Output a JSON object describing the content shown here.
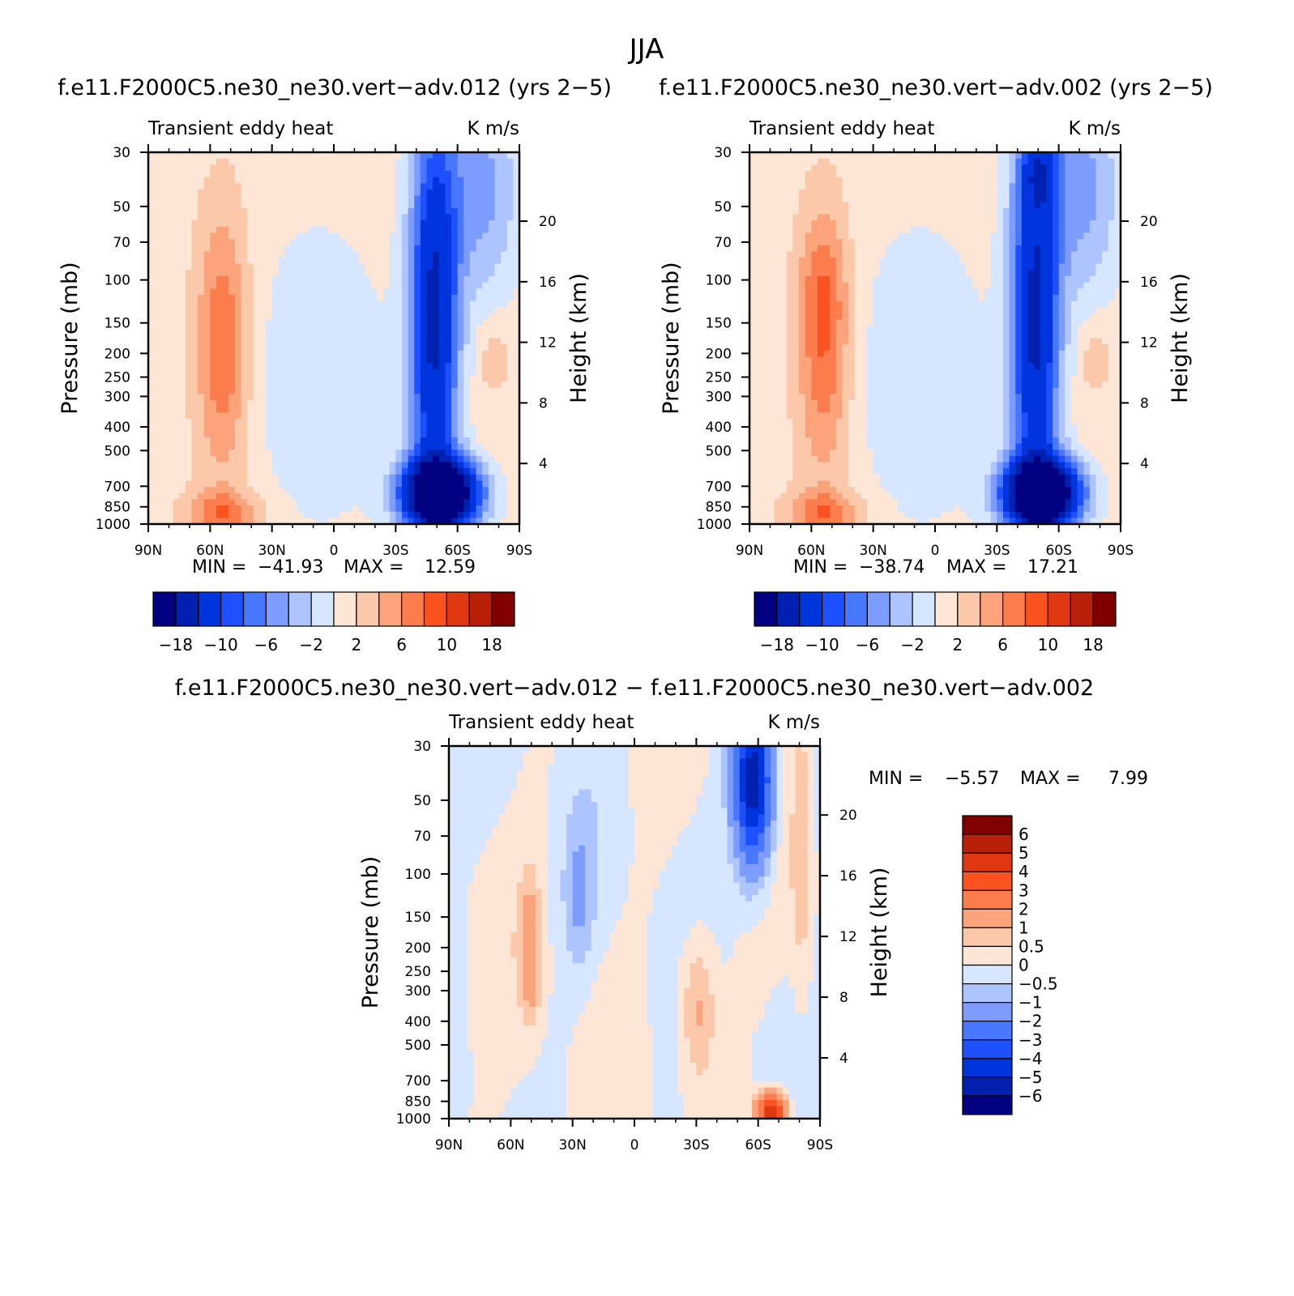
{
  "figure": {
    "season_title": "JJA"
  },
  "chart_data": [
    {
      "type": "heatmap",
      "title": "f.e11.F2000C5.ne30_ne30.vert−adv.012 (yrs 2−5)",
      "left_string": "Transient eddy heat",
      "right_string": "K m/s",
      "ylabel": "Pressure (mb)",
      "ylabel_right": "Height (km)",
      "x_ticks": [
        "90N",
        "60N",
        "30N",
        "0",
        "30S",
        "60S",
        "90S"
      ],
      "y_ticks": [
        "30",
        "50",
        "70",
        "100",
        "150",
        "200",
        "250",
        "300",
        "400",
        "500",
        "700",
        "850",
        "1000"
      ],
      "y_ticks_right": [
        "20",
        "16",
        "12",
        "8",
        "4"
      ],
      "min_label": "MIN =",
      "min_value": "−41.93",
      "max_label": "MAX =",
      "max_value": "12.59",
      "ylim": [
        1000,
        30
      ],
      "y_scale": "log",
      "colorbar_orientation": "horizontal",
      "colorbar_labels": [
        "−18",
        "−10",
        "−6",
        "−2",
        "2",
        "6",
        "10",
        "18"
      ],
      "colors": [
        "#000080",
        "#0020b0",
        "#0034dc",
        "#1e50ff",
        "#4878ff",
        "#7c9cff",
        "#aec4ff",
        "#d6e6ff",
        "#fde6d6",
        "#fcc8aa",
        "#fba47c",
        "#fb7c4c",
        "#fb5220",
        "#e03810",
        "#b82008",
        "#800000"
      ]
    },
    {
      "type": "heatmap",
      "title": "f.e11.F2000C5.ne30_ne30.vert−adv.002 (yrs 2−5)",
      "left_string": "Transient eddy heat",
      "right_string": "K m/s",
      "ylabel": "Pressure (mb)",
      "ylabel_right": "Height (km)",
      "x_ticks": [
        "90N",
        "60N",
        "30N",
        "0",
        "30S",
        "60S",
        "90S"
      ],
      "y_ticks": [
        "30",
        "50",
        "70",
        "100",
        "150",
        "200",
        "250",
        "300",
        "400",
        "500",
        "700",
        "850",
        "1000"
      ],
      "y_ticks_right": [
        "20",
        "16",
        "12",
        "8",
        "4"
      ],
      "min_label": "MIN =",
      "min_value": "−38.74",
      "max_label": "MAX =",
      "max_value": "17.21",
      "ylim": [
        1000,
        30
      ],
      "y_scale": "log",
      "colorbar_orientation": "horizontal",
      "colorbar_labels": [
        "−18",
        "−10",
        "−6",
        "−2",
        "2",
        "6",
        "10",
        "18"
      ],
      "colors": [
        "#000080",
        "#0020b0",
        "#0034dc",
        "#1e50ff",
        "#4878ff",
        "#7c9cff",
        "#aec4ff",
        "#d6e6ff",
        "#fde6d6",
        "#fcc8aa",
        "#fba47c",
        "#fb7c4c",
        "#fb5220",
        "#e03810",
        "#b82008",
        "#800000"
      ]
    },
    {
      "type": "heatmap",
      "title": "f.e11.F2000C5.ne30_ne30.vert−adv.012 − f.e11.F2000C5.ne30_ne30.vert−adv.002",
      "left_string": "Transient eddy heat",
      "right_string": "K m/s",
      "ylabel": "Pressure (mb)",
      "ylabel_right": "Height (km)",
      "x_ticks": [
        "90N",
        "60N",
        "30N",
        "0",
        "30S",
        "60S",
        "90S"
      ],
      "y_ticks": [
        "30",
        "50",
        "70",
        "100",
        "150",
        "200",
        "250",
        "300",
        "400",
        "500",
        "700",
        "850",
        "1000"
      ],
      "y_ticks_right": [
        "20",
        "16",
        "12",
        "8",
        "4"
      ],
      "min_label": "MIN =",
      "min_value": "−5.57",
      "max_label": "MAX =",
      "max_value": "7.99",
      "ylim": [
        1000,
        30
      ],
      "y_scale": "log",
      "colorbar_orientation": "vertical",
      "colorbar_labels": [
        "6",
        "5",
        "4",
        "3",
        "2",
        "1",
        "0.5",
        "0",
        "−0.5",
        "−1",
        "−2",
        "−3",
        "−4",
        "−5",
        "−6"
      ],
      "colors": [
        "#800000",
        "#b82008",
        "#e03810",
        "#fb5220",
        "#fb7c4c",
        "#fba47c",
        "#fcc8aa",
        "#fde6d6",
        "#d6e6ff",
        "#aec4ff",
        "#7c9cff",
        "#4878ff",
        "#1e50ff",
        "#0034dc",
        "#0020b0",
        "#000080"
      ]
    }
  ]
}
